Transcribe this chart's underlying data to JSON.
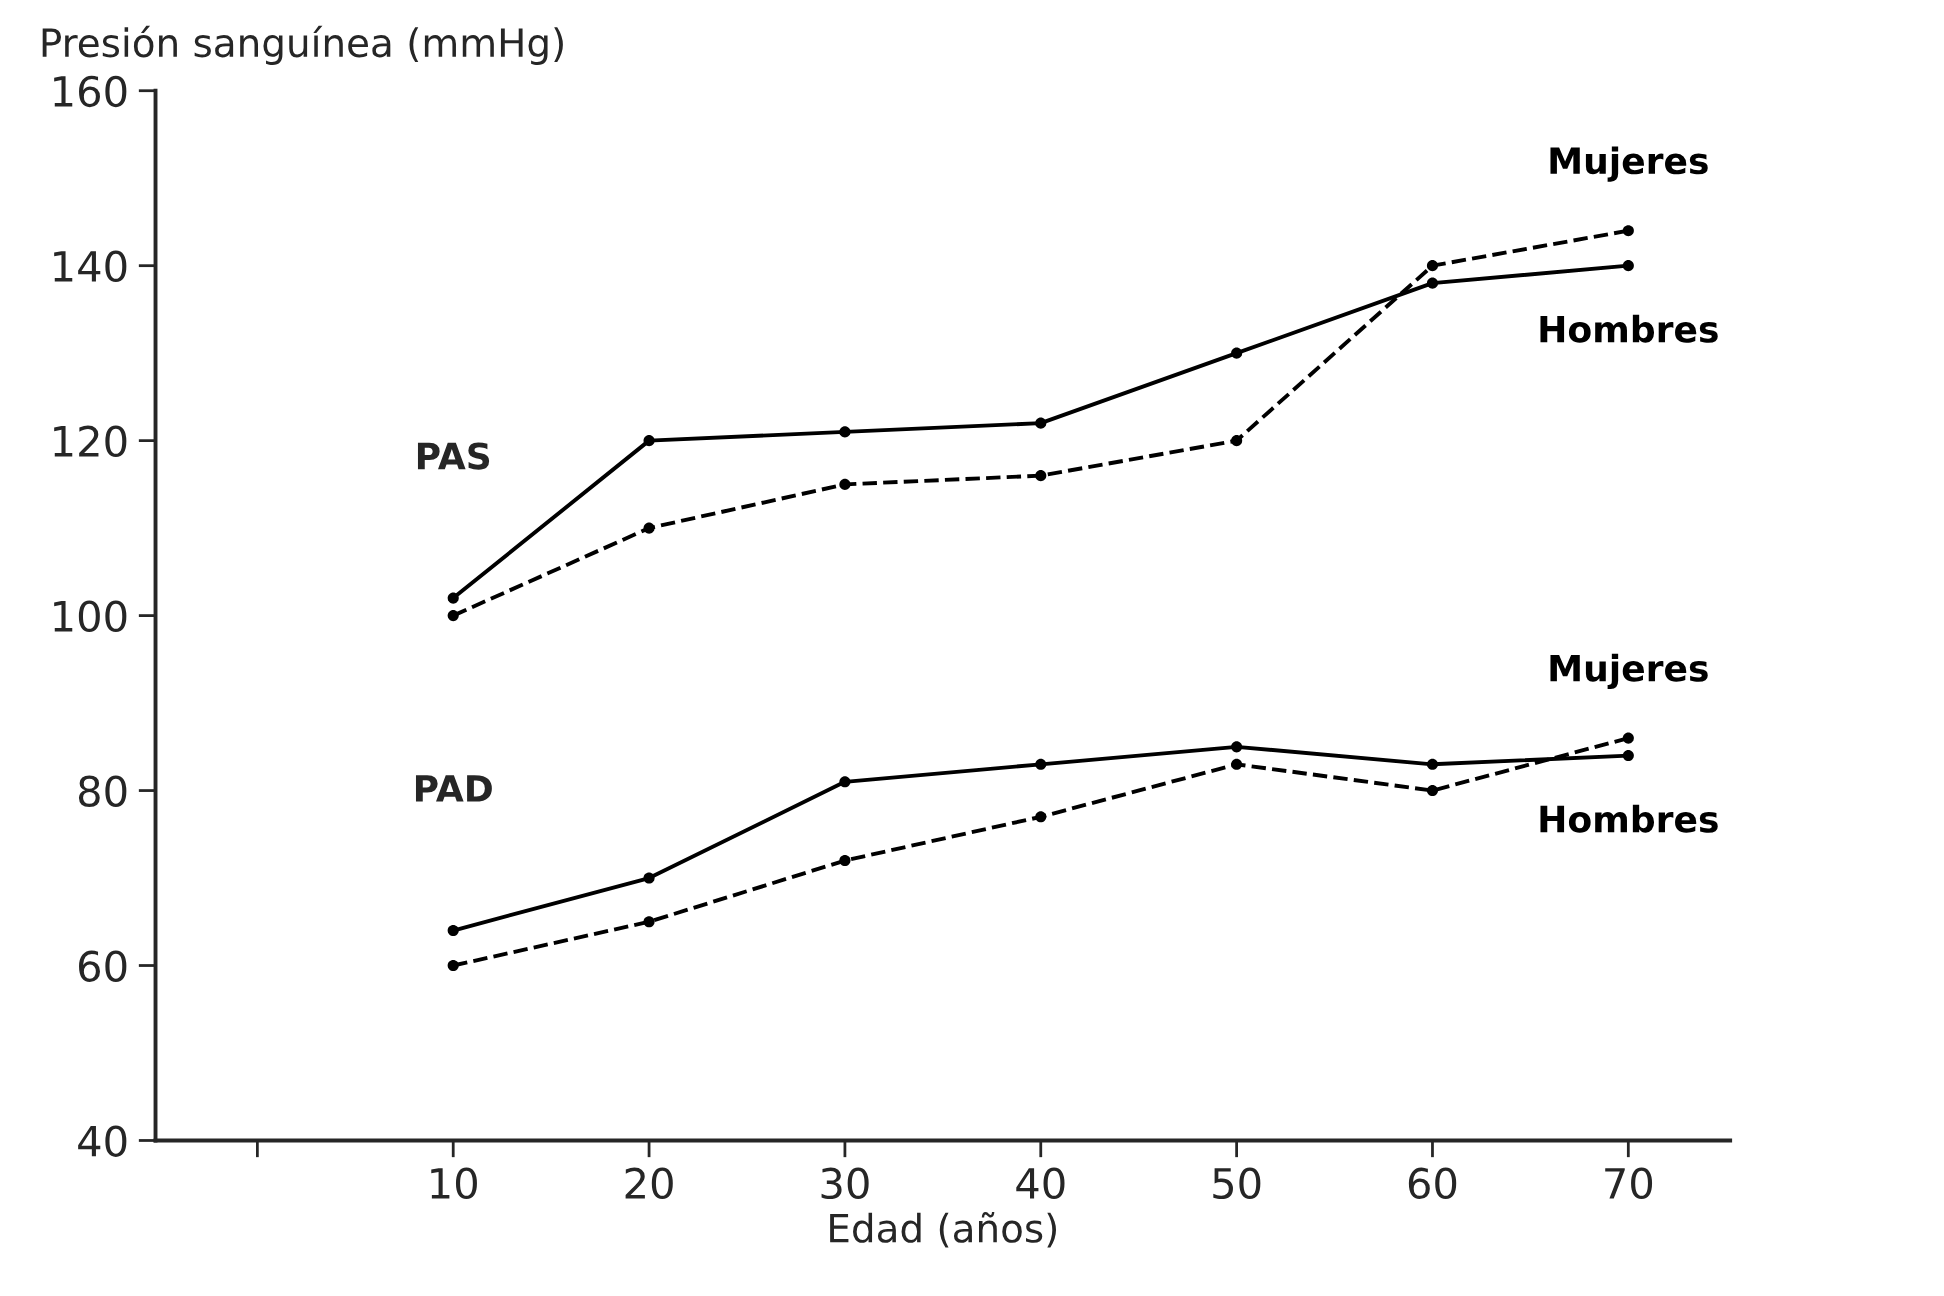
{
  "chart_data": {
    "type": "line",
    "xlabel": "Edad (años)",
    "ylabel": "Presión sanguínea (mmHg)",
    "x": [
      10,
      20,
      30,
      40,
      50,
      60,
      70
    ],
    "series": [
      {
        "name": "Mujeres",
        "color": "#000000",
        "line_style": "dashed",
        "values": [
          100,
          110,
          115,
          116,
          120,
          140,
          144
        ]
      },
      {
        "name": "Hombres",
        "color": "#000000",
        "line_style": "solid",
        "values": [
          102,
          120,
          121,
          122,
          130,
          138,
          140
        ]
      },
      {
        "name": "Mujeres",
        "color": "#000000",
        "line_style": "dashed",
        "values": [
          60,
          65,
          72,
          77,
          83,
          80,
          86
        ]
      },
      {
        "name": "Hombres",
        "color": "#000000",
        "line_style": "solid",
        "values": [
          64,
          70,
          81,
          83,
          85,
          83,
          84
        ]
      }
    ],
    "annotations": [
      "PAS",
      "PAD"
    ],
    "marker": "circle",
    "grid": false,
    "legend": false,
    "xlim": [
      -5.2,
      75.2
    ],
    "ylim": [
      40,
      160
    ],
    "xticks": [
      {
        "value": 0,
        "label": null
      },
      10,
      20,
      30,
      40,
      50,
      60,
      70
    ],
    "yticks": [
      40,
      60,
      80,
      100,
      120,
      140,
      160
    ]
  }
}
